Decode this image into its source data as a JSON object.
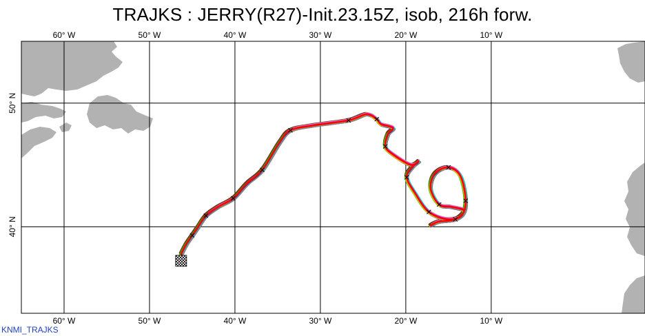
{
  "title": "TRAJKS : JERRY(R27)-Init.23.15Z, isob, 216h forw.",
  "footer": "KNMI_TRAJKS",
  "map": {
    "lon_range": [
      -65,
      8
    ],
    "lat_range": [
      33,
      55
    ],
    "lon_ticks": [
      {
        "value": -60,
        "label": "60° W"
      },
      {
        "value": -50,
        "label": "50° W"
      },
      {
        "value": -40,
        "label": "40° W"
      },
      {
        "value": -30,
        "label": "30° W"
      },
      {
        "value": -20,
        "label": "20° W"
      },
      {
        "value": -10,
        "label": "10° W"
      }
    ],
    "lat_ticks": [
      {
        "value": 50,
        "label": "50° N"
      },
      {
        "value": 40,
        "label": "40° N"
      }
    ],
    "land_color": "#b2b2b2",
    "grid": true
  },
  "colors": {
    "main_track": "#ff0000",
    "ensemble": [
      "#5a1a12",
      "#7a2d1e",
      "#c8a0a0",
      "#00cc00",
      "#00dddd",
      "#1a1aa0",
      "#ff00ff",
      "#e0c000",
      "#888888"
    ],
    "start_marker": "#000000"
  },
  "trajectory": {
    "start": [
      -46.3,
      37.8
    ],
    "points": [
      [
        -46.3,
        37.8
      ],
      [
        -45.7,
        38.6
      ],
      [
        -45.0,
        39.3
      ],
      [
        -44.3,
        40.0
      ],
      [
        -43.4,
        40.9
      ],
      [
        -42.0,
        41.6
      ],
      [
        -40.2,
        42.3
      ],
      [
        -38.6,
        43.5
      ],
      [
        -36.8,
        44.6
      ],
      [
        -34.8,
        46.8
      ],
      [
        -33.5,
        47.8
      ],
      [
        -30.8,
        48.2
      ],
      [
        -26.7,
        48.6
      ],
      [
        -24.6,
        49.1
      ],
      [
        -23.4,
        48.7
      ],
      [
        -22.9,
        48.3
      ],
      [
        -21.5,
        48.0
      ],
      [
        -22.1,
        47.5
      ],
      [
        -22.4,
        46.5
      ],
      [
        -21.4,
        45.8
      ],
      [
        -19.4,
        45.0
      ],
      [
        -18.5,
        45.3
      ],
      [
        -19.3,
        44.8
      ],
      [
        -19.9,
        44.0
      ],
      [
        -18.9,
        42.7
      ],
      [
        -17.3,
        41.2
      ],
      [
        -15.1,
        40.6
      ],
      [
        -13.5,
        40.9
      ],
      [
        -13.0,
        42.1
      ],
      [
        -13.6,
        44.1
      ],
      [
        -15.0,
        44.8
      ],
      [
        -16.6,
        44.3
      ],
      [
        -17.1,
        43.1
      ],
      [
        -16.1,
        41.8
      ],
      [
        -14.6,
        41.6
      ],
      [
        -13.2,
        41.3
      ],
      [
        -14.2,
        40.6
      ],
      [
        -16.2,
        40.4
      ],
      [
        -17.1,
        40.1
      ]
    ],
    "time_marks": [
      [
        -45.0,
        39.3
      ],
      [
        -43.4,
        40.9
      ],
      [
        -40.2,
        42.3
      ],
      [
        -36.8,
        44.6
      ],
      [
        -33.5,
        47.8
      ],
      [
        -26.7,
        48.6
      ],
      [
        -23.4,
        48.7
      ],
      [
        -22.4,
        46.5
      ],
      [
        -19.9,
        44.0
      ],
      [
        -17.3,
        41.2
      ],
      [
        -13.0,
        42.1
      ],
      [
        -15.0,
        44.8
      ],
      [
        -16.1,
        41.8
      ],
      [
        -14.2,
        40.6
      ]
    ]
  }
}
